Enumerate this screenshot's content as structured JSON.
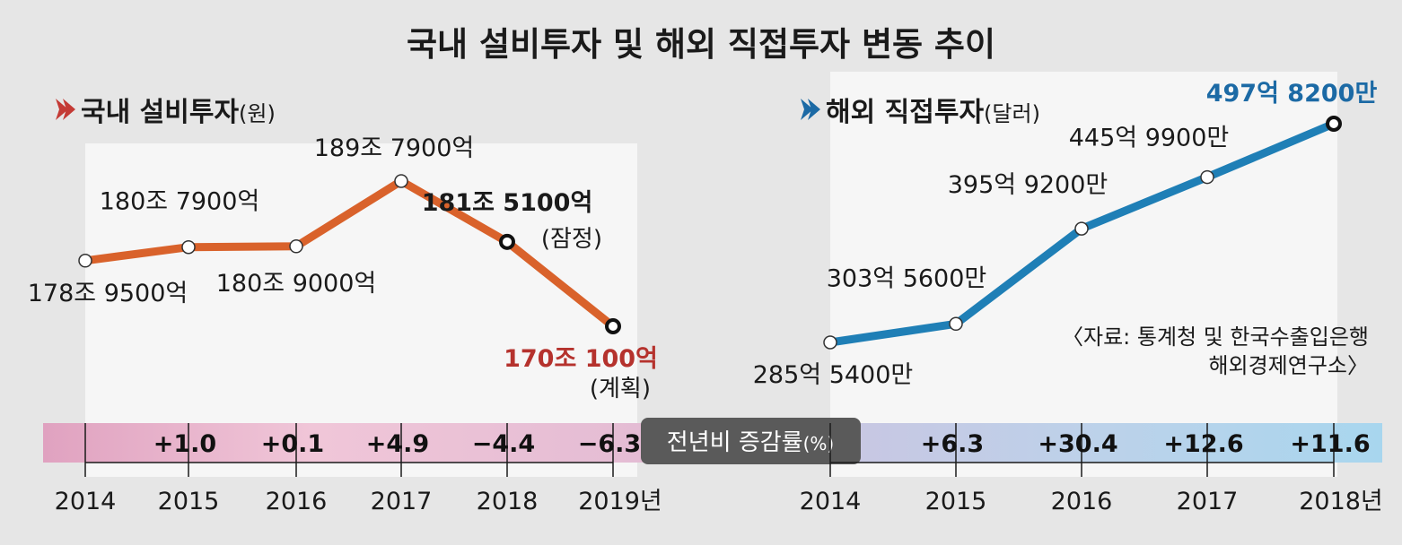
{
  "title": "국내 설비투자 및 해외 직접투자 변동 추이",
  "colors": {
    "domestic": "#d9622b",
    "domestic_text": "#b5322d",
    "overseas": "#1f7fb6",
    "overseas_text": "#1c6aa5",
    "badge": "#5a5a5a"
  },
  "growth_badge": "전년비 증감률",
  "growth_badge_unit": "(%)",
  "source_lines": [
    "〈자료: 통계청 및 한국수출입은행",
    "해외경제연구소〉"
  ],
  "chart_data": [
    {
      "type": "line",
      "title": "국내 설비투자",
      "unit": "(원)",
      "categories": [
        "2014",
        "2015",
        "2016",
        "2017",
        "2018",
        "2019년"
      ],
      "values": [
        178.95,
        180.79,
        180.9,
        189.79,
        181.51,
        170.01
      ],
      "value_labels": [
        "178조 9500억",
        "180조 7900억",
        "180조 9000억",
        "189조 7900억",
        "181조 5100억",
        "170조 100억"
      ],
      "notes": [
        "",
        "",
        "",
        "",
        "(잠정)",
        "(계획)"
      ],
      "growth": [
        "",
        "+1.0",
        "+0.1",
        "+4.9",
        "−4.4",
        "−6.3"
      ],
      "highlight": [
        4,
        5
      ]
    },
    {
      "type": "line",
      "title": "해외 직접투자",
      "unit": "(달러)",
      "categories": [
        "2014",
        "2015",
        "2016",
        "2017",
        "2018년"
      ],
      "values": [
        285.54,
        303.56,
        395.92,
        445.99,
        497.82
      ],
      "value_labels": [
        "285억 5400만",
        "303억 5600만",
        "395억 9200만",
        "445억 9900만",
        "497억 8200만"
      ],
      "growth": [
        "",
        "+6.3",
        "+30.4",
        "+12.6",
        "+11.6"
      ],
      "highlight": [
        4
      ]
    }
  ]
}
